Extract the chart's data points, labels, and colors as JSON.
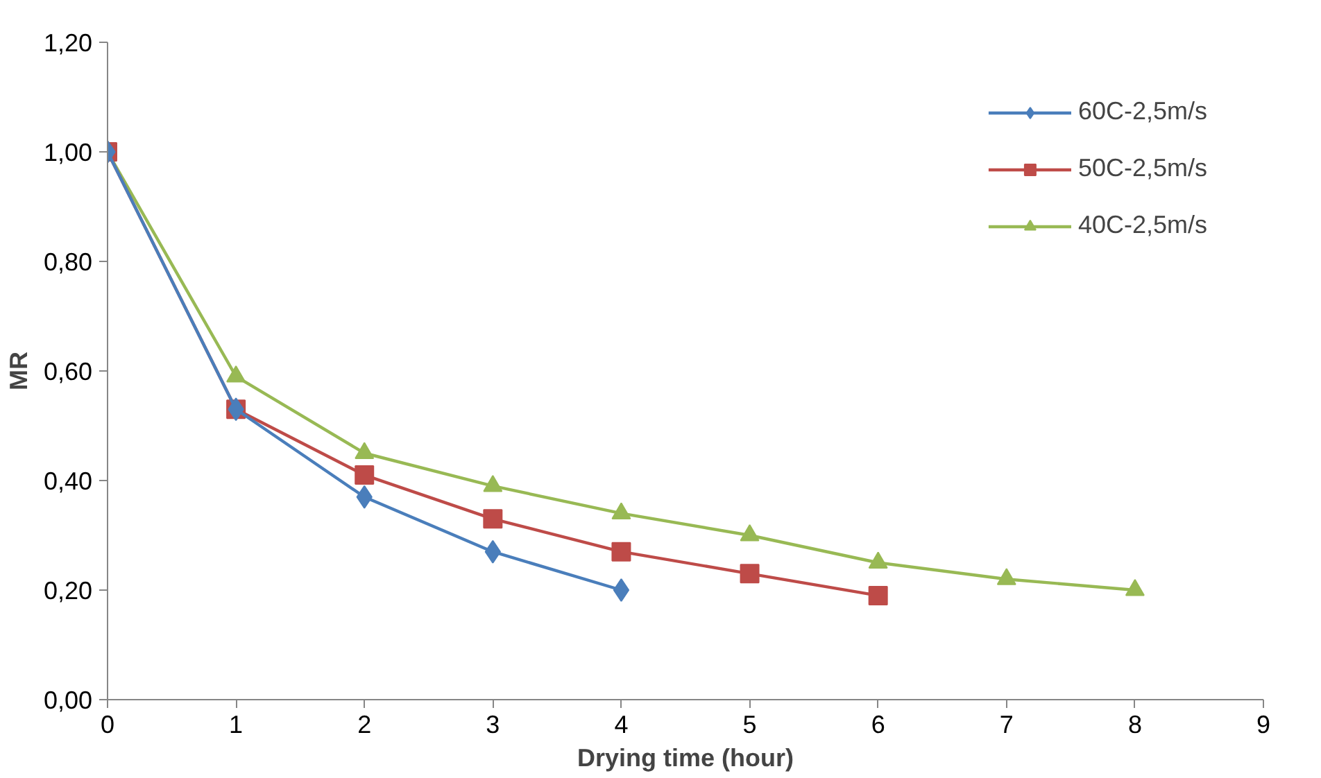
{
  "chart_data": {
    "type": "line",
    "xlabel": "Drying time (hour)",
    "ylabel": "MR",
    "xlim": [
      0,
      9
    ],
    "xticks": [
      0,
      1,
      2,
      3,
      4,
      5,
      6,
      7,
      8,
      9
    ],
    "ylim": [
      0,
      1.2
    ],
    "yticks": [
      {
        "value": 0,
        "label": "0,00"
      },
      {
        "value": 0.2,
        "label": "0,20"
      },
      {
        "value": 0.4,
        "label": "0,40"
      },
      {
        "value": 0.6,
        "label": "0,60"
      },
      {
        "value": 0.8,
        "label": "0,80"
      },
      {
        "value": 1.0,
        "label": "1,00"
      },
      {
        "value": 1.2,
        "label": "1,20"
      }
    ],
    "grid": false,
    "legend": "top right",
    "series": [
      {
        "name": "60C-2,5m/s",
        "color": "#4a7ebb",
        "marker": "diamond",
        "x": [
          0,
          1,
          2,
          3,
          4
        ],
        "values": [
          1.0,
          0.53,
          0.37,
          0.27,
          0.2
        ]
      },
      {
        "name": "50C-2,5m/s",
        "color": "#be4b48",
        "marker": "square",
        "x": [
          0,
          1,
          2,
          3,
          4,
          5,
          6
        ],
        "values": [
          1.0,
          0.53,
          0.41,
          0.33,
          0.27,
          0.23,
          0.19
        ]
      },
      {
        "name": "40C-2,5m/s",
        "color": "#98b954",
        "marker": "triangle",
        "x": [
          0,
          1,
          2,
          3,
          4,
          5,
          6,
          7,
          8
        ],
        "values": [
          1.0,
          0.59,
          0.45,
          0.39,
          0.34,
          0.3,
          0.25,
          0.22,
          0.2
        ]
      }
    ]
  }
}
